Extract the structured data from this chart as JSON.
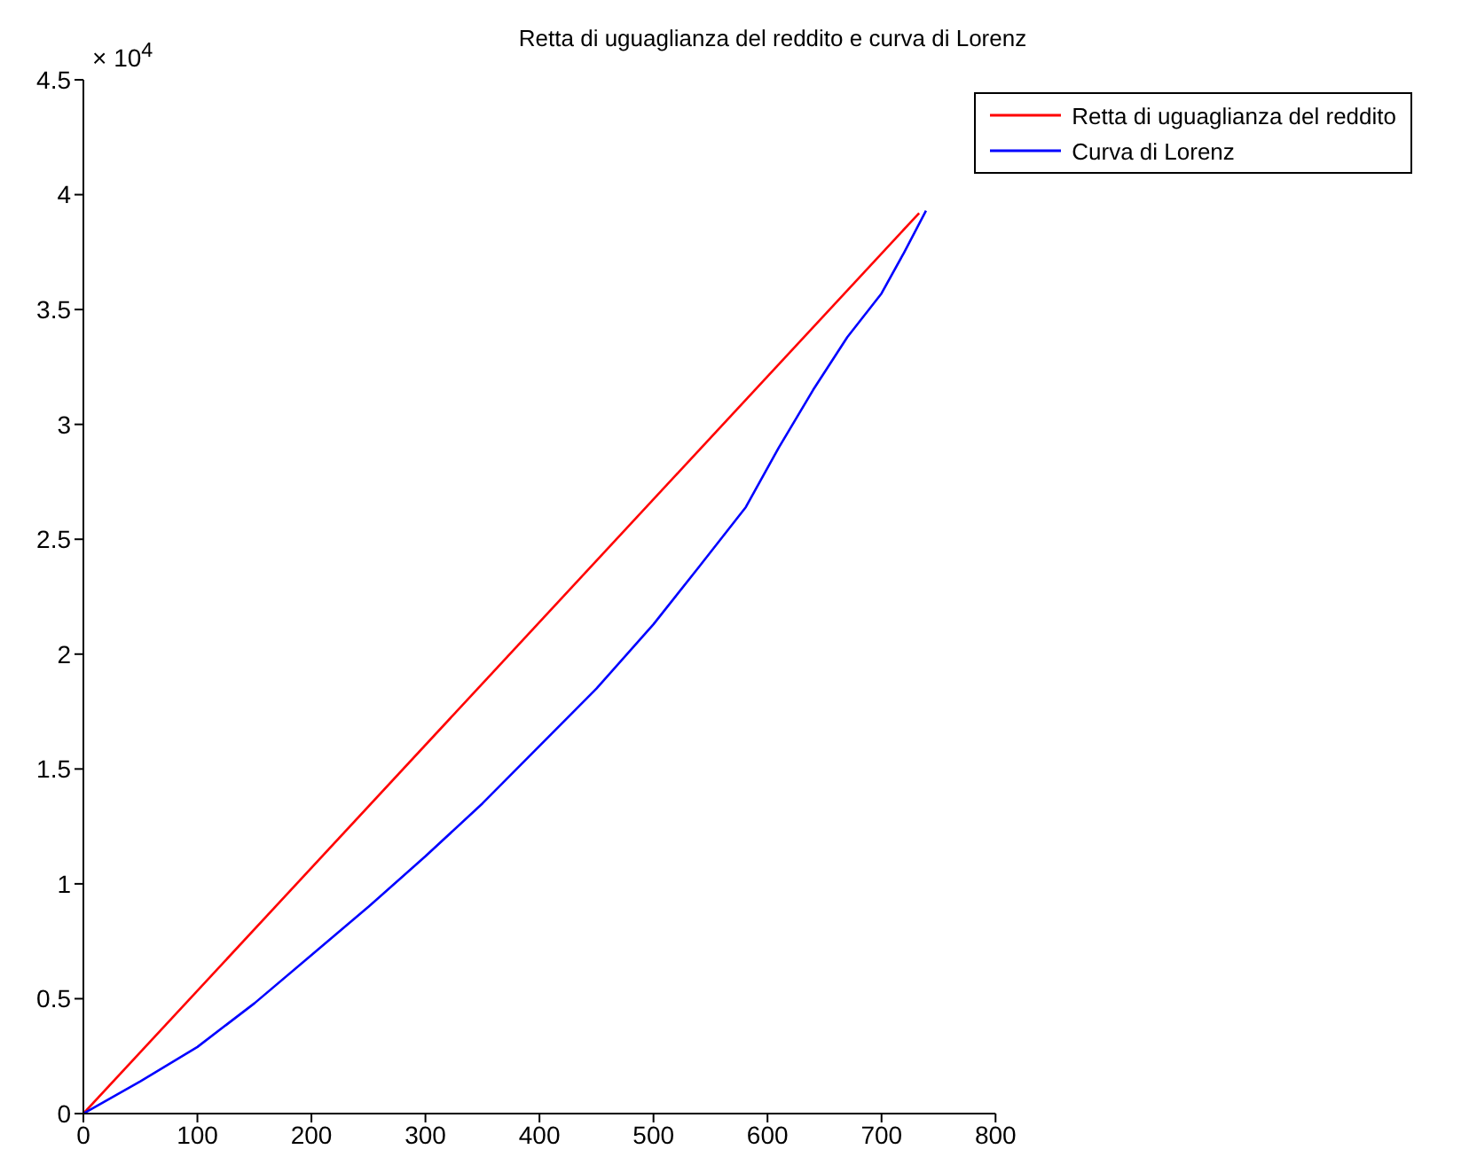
{
  "chart_data": {
    "type": "line",
    "title": "Retta di uguaglianza del reddito e curva di Lorenz",
    "annotations": [
      "× 10$^{4}$"
    ],
    "series": [
      {
        "name": "Retta di uguaglianza del reddito",
        "color": "#ff0000",
        "x": [
          0,
          733
        ],
        "values": [
          0,
          3.92
        ]
      },
      {
        "name": "Curva di Lorenz",
        "color": "#0000ff",
        "x": [
          0,
          50,
          100,
          150,
          200,
          250,
          300,
          350,
          400,
          450,
          500,
          540,
          581,
          610,
          640,
          670,
          700,
          720,
          739
        ],
        "values": [
          0,
          0.14,
          0.29,
          0.48,
          0.69,
          0.9,
          1.12,
          1.35,
          1.6,
          1.85,
          2.13,
          2.38,
          2.64,
          2.9,
          3.15,
          3.38,
          3.57,
          3.75,
          3.93
        ]
      }
    ],
    "xlim": [
      0,
      800
    ],
    "xticks": [
      0,
      100,
      200,
      300,
      400,
      500,
      600,
      700,
      800
    ],
    "ylim": [
      0,
      4.5
    ],
    "yticks": [
      0,
      0.5,
      1,
      1.5,
      2,
      2.5,
      3,
      3.5,
      4,
      4.5
    ],
    "grid": false,
    "legend": "top right",
    "marker": "none",
    "line_style": "solid"
  }
}
